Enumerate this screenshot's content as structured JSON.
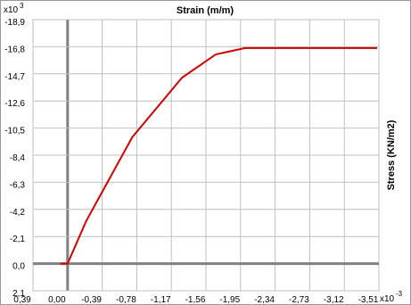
{
  "chart_data": {
    "type": "line",
    "title": "Strain   (m/m)",
    "y_label": "Stress   (KN/m2)",
    "y_scale_base": "x10",
    "y_scale_exp": "3",
    "x_scale_base": "x10",
    "x_scale_exp": "-3",
    "x": [
      0.08,
      0.0,
      -0.21,
      -0.73,
      -1.29,
      -1.67,
      -2.0,
      -3.49
    ],
    "values": [
      0.0,
      0.0,
      -3.3,
      -9.8,
      -14.4,
      -16.2,
      -16.7,
      -16.7
    ],
    "color": "#cc0000",
    "xlim": [
      0.39,
      -3.51
    ],
    "xticks": [
      {
        "value": 0.39,
        "label": "0,39"
      },
      {
        "value": 0,
        "label": "0,00"
      },
      {
        "value": -0.39,
        "label": "-0,39"
      },
      {
        "value": -0.78,
        "label": "-0,78"
      },
      {
        "value": -1.17,
        "label": "-1,17"
      },
      {
        "value": -1.56,
        "label": "-1,56"
      },
      {
        "value": -1.95,
        "label": "-1,95"
      },
      {
        "value": -2.34,
        "label": "-2,34"
      },
      {
        "value": -2.73,
        "label": "-2,73"
      },
      {
        "value": -3.12,
        "label": "-3,12"
      },
      {
        "value": -3.51,
        "label": "-3,51"
      }
    ],
    "ylim": [
      2.1,
      -18.9
    ],
    "yticks": [
      {
        "value": 2.1,
        "label": "2,1"
      },
      {
        "value": 0,
        "label": "0,0"
      },
      {
        "value": -2.1,
        "label": "-2,1"
      },
      {
        "value": -4.2,
        "label": "-4,2"
      },
      {
        "value": -6.3,
        "label": "-6,3"
      },
      {
        "value": -8.4,
        "label": "-8,4"
      },
      {
        "value": -10.5,
        "label": "-10,5"
      },
      {
        "value": -12.6,
        "label": "-12,6"
      },
      {
        "value": -14.7,
        "label": "-14,7"
      },
      {
        "value": -16.8,
        "label": "-16,8"
      },
      {
        "value": -18.9,
        "label": "-18,9"
      }
    ],
    "grid": true
  }
}
